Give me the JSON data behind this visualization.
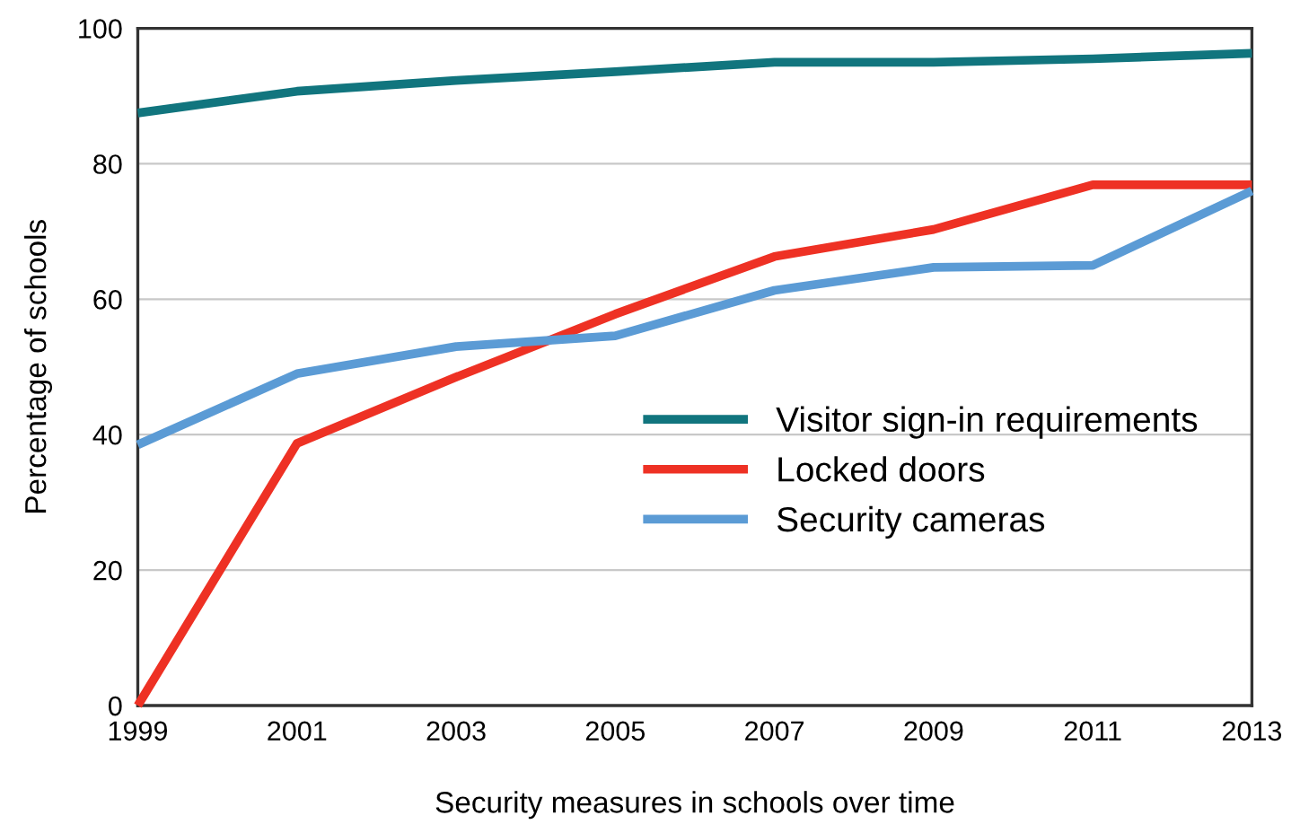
{
  "chart_data": {
    "type": "line",
    "xlabel": "Security measures in schools over time",
    "ylabel": "Percentage of schools",
    "x": [
      1999,
      2001,
      2003,
      2005,
      2007,
      2009,
      2011,
      2013
    ],
    "series": [
      {
        "name": "Visitor sign-in requirements",
        "color": "#11757e",
        "values": [
          87.5,
          90.7,
          92.3,
          93.6,
          95,
          95,
          95.5,
          96.3
        ]
      },
      {
        "name": "Locked doors",
        "color": "#ee3124",
        "values": [
          0,
          38.7,
          48.5,
          57.8,
          66.3,
          70.3,
          76.9,
          76.9
        ]
      },
      {
        "name": "Security cameras",
        "color": "#5b9bd5",
        "values": [
          38.5,
          49,
          53,
          54.6,
          61.3,
          64.7,
          65,
          76
        ]
      }
    ],
    "xlim": [
      1999,
      2013
    ],
    "ylim": [
      0,
      100
    ],
    "xticks": [
      1999,
      2001,
      2003,
      2005,
      2007,
      2009,
      2011,
      2013
    ],
    "yticks": [
      0,
      20,
      40,
      60,
      80,
      100
    ],
    "grid": "y",
    "legend": "bottom right",
    "marker": "none",
    "line_style": "solid"
  }
}
